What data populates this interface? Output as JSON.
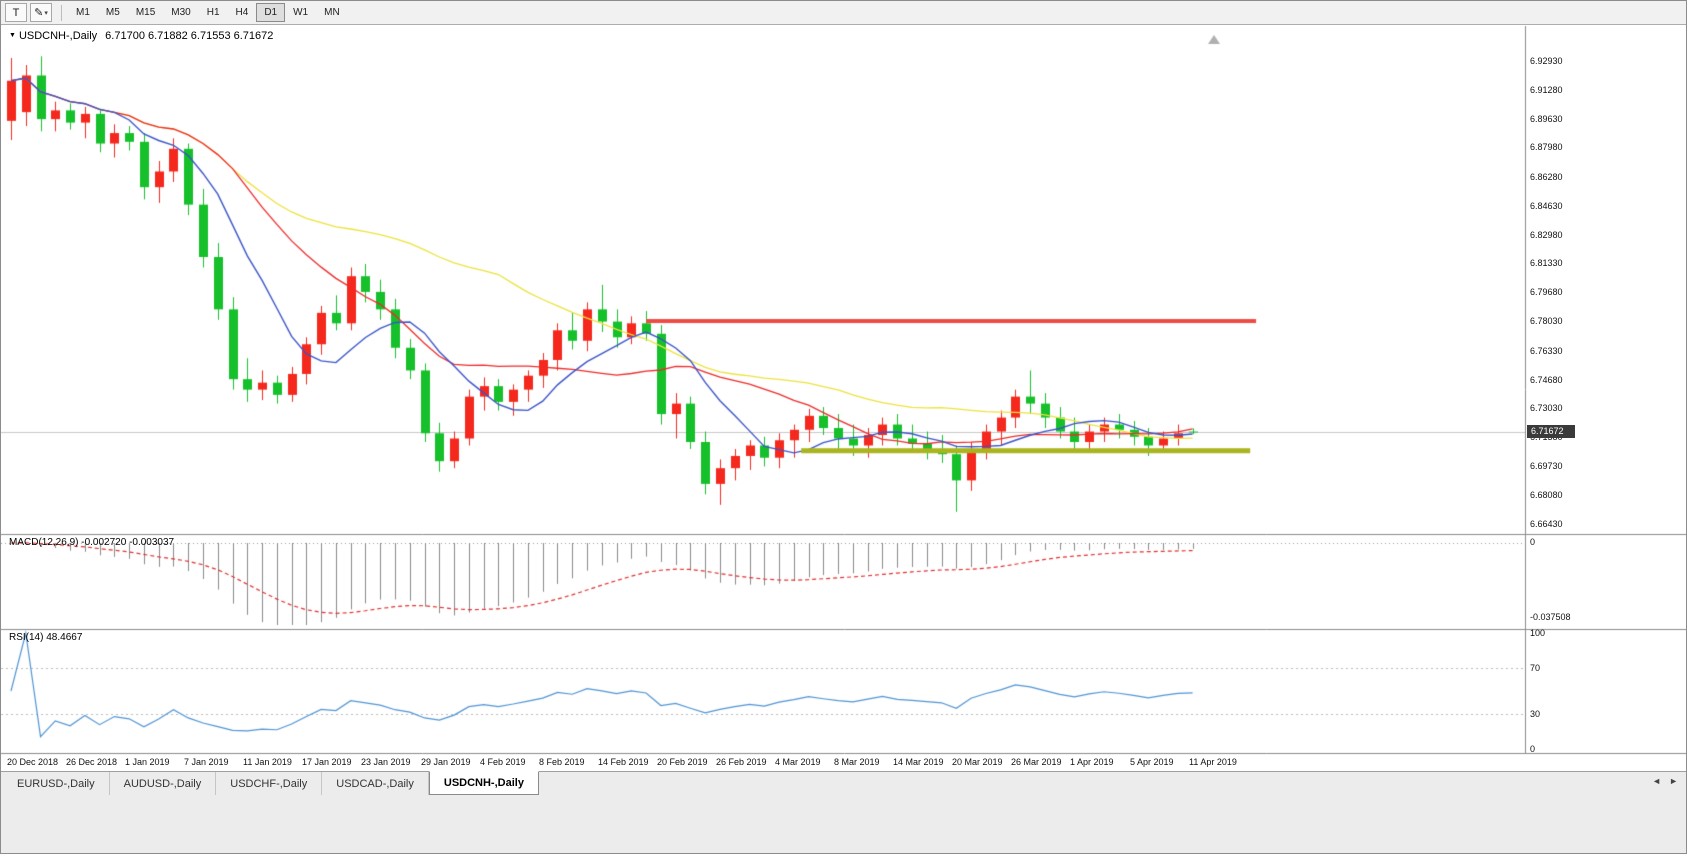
{
  "toolbar": {
    "text_tool_label": "T",
    "draw_tool_icon": "✎",
    "dropdown_caret": "▾",
    "timeframes": [
      "M1",
      "M5",
      "M15",
      "M30",
      "H1",
      "H4",
      "D1",
      "W1",
      "MN"
    ],
    "active_timeframe": "D1"
  },
  "chart": {
    "title_symbol": "USDCNH-,Daily",
    "title_ohlc": "6.71700 6.71882 6.71553 6.71672",
    "current_price_tag": "6.71672"
  },
  "macd_panel": {
    "label": "MACD(12,26,9) -0.002720 -0.003037",
    "axis_ticks": [
      "0",
      "-0.037508"
    ]
  },
  "rsi_panel": {
    "label": "RSI(14) 48.4667",
    "axis_ticks": [
      "100",
      "70",
      "30",
      "0"
    ]
  },
  "tabs": [
    {
      "label": "EURUSD-,Daily",
      "active": false
    },
    {
      "label": "AUDUSD-,Daily",
      "active": false
    },
    {
      "label": "USDCHF-,Daily",
      "active": false
    },
    {
      "label": "USDCAD-,Daily",
      "active": false
    },
    {
      "label": "USDCNH-,Daily",
      "active": true
    }
  ],
  "tab_nav": {
    "left": "◄",
    "right": "►"
  },
  "chart_data": {
    "type": "candlestick",
    "symbol": "USDCNH",
    "period": "Daily",
    "ohlc_display": {
      "open": "6.71700",
      "high": "6.71882",
      "low": "6.71553",
      "close": "6.71672"
    },
    "up_color": "#f5281e",
    "down_color": "#15c02b",
    "price_axis": {
      "max": 6.9293,
      "min": 6.6643,
      "tick_labels": [
        "6.92930",
        "6.91280",
        "6.89630",
        "6.87980",
        "6.86280",
        "6.84630",
        "6.82980",
        "6.81330",
        "6.79680",
        "6.78030",
        "6.76330",
        "6.74680",
        "6.73030",
        "6.71380",
        "6.69730",
        "6.68080",
        "6.66430"
      ]
    },
    "x_axis": {
      "tick_labels": [
        {
          "label": "20 Dec 2018",
          "index": 0
        },
        {
          "label": "26 Dec 2018",
          "index": 4
        },
        {
          "label": "1 Jan 2019",
          "index": 8
        },
        {
          "label": "7 Jan 2019",
          "index": 12
        },
        {
          "label": "11 Jan 2019",
          "index": 16
        },
        {
          "label": "17 Jan 2019",
          "index": 20
        },
        {
          "label": "23 Jan 2019",
          "index": 24
        },
        {
          "label": "29 Jan 2019",
          "index": 28
        },
        {
          "label": "4 Feb 2019",
          "index": 32
        },
        {
          "label": "8 Feb 2019",
          "index": 36
        },
        {
          "label": "14 Feb 2019",
          "index": 40
        },
        {
          "label": "20 Feb 2019",
          "index": 44
        },
        {
          "label": "26 Feb 2019",
          "index": 48
        },
        {
          "label": "4 Mar 2019",
          "index": 52
        },
        {
          "label": "8 Mar 2019",
          "index": 56
        },
        {
          "label": "14 Mar 2019",
          "index": 60
        },
        {
          "label": "20 Mar 2019",
          "index": 64
        },
        {
          "label": "26 Mar 2019",
          "index": 68
        },
        {
          "label": "1 Apr 2019",
          "index": 72
        },
        {
          "label": "5 Apr 2019",
          "index": 76
        },
        {
          "label": "11 Apr 2019",
          "index": 80
        }
      ]
    },
    "candles": [
      {
        "t": "20 Dec 2018",
        "o": 6.895,
        "h": 6.931,
        "l": 6.884,
        "c": 6.918
      },
      {
        "t": "21 Dec 2018",
        "o": 6.9,
        "h": 6.927,
        "l": 6.892,
        "c": 6.921
      },
      {
        "t": "24 Dec 2018",
        "o": 6.921,
        "h": 6.932,
        "l": 6.889,
        "c": 6.896
      },
      {
        "t": "25 Dec 2018",
        "o": 6.896,
        "h": 6.906,
        "l": 6.889,
        "c": 6.901
      },
      {
        "t": "26 Dec 2018",
        "o": 6.901,
        "h": 6.905,
        "l": 6.89,
        "c": 6.894
      },
      {
        "t": "27 Dec 2018",
        "o": 6.894,
        "h": 6.903,
        "l": 6.885,
        "c": 6.899
      },
      {
        "t": "28 Dec 2018",
        "o": 6.899,
        "h": 6.902,
        "l": 6.877,
        "c": 6.882
      },
      {
        "t": "31 Dec 2018",
        "o": 6.882,
        "h": 6.893,
        "l": 6.874,
        "c": 6.888
      },
      {
        "t": "1 Jan 2019",
        "o": 6.888,
        "h": 6.892,
        "l": 6.878,
        "c": 6.883
      },
      {
        "t": "2 Jan 2019",
        "o": 6.883,
        "h": 6.888,
        "l": 6.85,
        "c": 6.857
      },
      {
        "t": "3 Jan 2019",
        "o": 6.857,
        "h": 6.872,
        "l": 6.848,
        "c": 6.866
      },
      {
        "t": "4 Jan 2019",
        "o": 6.866,
        "h": 6.885,
        "l": 6.86,
        "c": 6.879
      },
      {
        "t": "7 Jan 2019",
        "o": 6.879,
        "h": 6.882,
        "l": 6.841,
        "c": 6.847
      },
      {
        "t": "8 Jan 2019",
        "o": 6.847,
        "h": 6.856,
        "l": 6.811,
        "c": 6.817
      },
      {
        "t": "9 Jan 2019",
        "o": 6.817,
        "h": 6.825,
        "l": 6.781,
        "c": 6.787
      },
      {
        "t": "10 Jan 2019",
        "o": 6.787,
        "h": 6.794,
        "l": 6.741,
        "c": 6.747
      },
      {
        "t": "11 Jan 2019",
        "o": 6.747,
        "h": 6.759,
        "l": 6.734,
        "c": 6.741
      },
      {
        "t": "14 Jan 2019",
        "o": 6.741,
        "h": 6.752,
        "l": 6.735,
        "c": 6.745
      },
      {
        "t": "15 Jan 2019",
        "o": 6.745,
        "h": 6.749,
        "l": 6.733,
        "c": 6.738
      },
      {
        "t": "16 Jan 2019",
        "o": 6.738,
        "h": 6.754,
        "l": 6.734,
        "c": 6.75
      },
      {
        "t": "17 Jan 2019",
        "o": 6.75,
        "h": 6.771,
        "l": 6.744,
        "c": 6.767
      },
      {
        "t": "18 Jan 2019",
        "o": 6.767,
        "h": 6.789,
        "l": 6.761,
        "c": 6.785
      },
      {
        "t": "21 Jan 2019",
        "o": 6.785,
        "h": 6.795,
        "l": 6.775,
        "c": 6.779
      },
      {
        "t": "22 Jan 2019",
        "o": 6.779,
        "h": 6.811,
        "l": 6.775,
        "c": 6.806
      },
      {
        "t": "23 Jan 2019",
        "o": 6.806,
        "h": 6.813,
        "l": 6.791,
        "c": 6.797
      },
      {
        "t": "24 Jan 2019",
        "o": 6.797,
        "h": 6.804,
        "l": 6.781,
        "c": 6.787
      },
      {
        "t": "25 Jan 2019",
        "o": 6.787,
        "h": 6.793,
        "l": 6.759,
        "c": 6.765
      },
      {
        "t": "28 Jan 2019",
        "o": 6.765,
        "h": 6.77,
        "l": 6.747,
        "c": 6.752
      },
      {
        "t": "29 Jan 2019",
        "o": 6.752,
        "h": 6.756,
        "l": 6.711,
        "c": 6.716
      },
      {
        "t": "30 Jan 2019",
        "o": 6.716,
        "h": 6.722,
        "l": 6.694,
        "c": 6.7
      },
      {
        "t": "31 Jan 2019",
        "o": 6.7,
        "h": 6.717,
        "l": 6.696,
        "c": 6.713
      },
      {
        "t": "1 Feb 2019",
        "o": 6.713,
        "h": 6.741,
        "l": 6.709,
        "c": 6.737
      },
      {
        "t": "4 Feb 2019",
        "o": 6.737,
        "h": 6.748,
        "l": 6.729,
        "c": 6.743
      },
      {
        "t": "5 Feb 2019",
        "o": 6.743,
        "h": 6.747,
        "l": 6.729,
        "c": 6.734
      },
      {
        "t": "6 Feb 2019",
        "o": 6.734,
        "h": 6.744,
        "l": 6.726,
        "c": 6.741
      },
      {
        "t": "7 Feb 2019",
        "o": 6.741,
        "h": 6.752,
        "l": 6.734,
        "c": 6.749
      },
      {
        "t": "8 Feb 2019",
        "o": 6.749,
        "h": 6.762,
        "l": 6.742,
        "c": 6.758
      },
      {
        "t": "11 Feb 2019",
        "o": 6.758,
        "h": 6.779,
        "l": 6.752,
        "c": 6.775
      },
      {
        "t": "12 Feb 2019",
        "o": 6.775,
        "h": 6.785,
        "l": 6.764,
        "c": 6.769
      },
      {
        "t": "13 Feb 2019",
        "o": 6.769,
        "h": 6.791,
        "l": 6.763,
        "c": 6.787
      },
      {
        "t": "14 Feb 2019",
        "o": 6.787,
        "h": 6.801,
        "l": 6.774,
        "c": 6.78
      },
      {
        "t": "15 Feb 2019",
        "o": 6.78,
        "h": 6.787,
        "l": 6.765,
        "c": 6.771
      },
      {
        "t": "18 Feb 2019",
        "o": 6.771,
        "h": 6.783,
        "l": 6.767,
        "c": 6.779
      },
      {
        "t": "19 Feb 2019",
        "o": 6.779,
        "h": 6.786,
        "l": 6.769,
        "c": 6.773
      },
      {
        "t": "20 Feb 2019",
        "o": 6.773,
        "h": 6.778,
        "l": 6.721,
        "c": 6.727
      },
      {
        "t": "21 Feb 2019",
        "o": 6.727,
        "h": 6.739,
        "l": 6.713,
        "c": 6.733
      },
      {
        "t": "22 Feb 2019",
        "o": 6.733,
        "h": 6.737,
        "l": 6.707,
        "c": 6.711
      },
      {
        "t": "25 Feb 2019",
        "o": 6.711,
        "h": 6.717,
        "l": 6.681,
        "c": 6.687
      },
      {
        "t": "26 Feb 2019",
        "o": 6.687,
        "h": 6.701,
        "l": 6.675,
        "c": 6.696
      },
      {
        "t": "27 Feb 2019",
        "o": 6.696,
        "h": 6.707,
        "l": 6.689,
        "c": 6.703
      },
      {
        "t": "28 Feb 2019",
        "o": 6.703,
        "h": 6.712,
        "l": 6.695,
        "c": 6.709
      },
      {
        "t": "1 Mar 2019",
        "o": 6.709,
        "h": 6.714,
        "l": 6.697,
        "c": 6.702
      },
      {
        "t": "4 Mar 2019",
        "o": 6.702,
        "h": 6.716,
        "l": 6.696,
        "c": 6.712
      },
      {
        "t": "5 Mar 2019",
        "o": 6.712,
        "h": 6.721,
        "l": 6.702,
        "c": 6.718
      },
      {
        "t": "6 Mar 2019",
        "o": 6.718,
        "h": 6.73,
        "l": 6.711,
        "c": 6.726
      },
      {
        "t": "7 Mar 2019",
        "o": 6.726,
        "h": 6.731,
        "l": 6.715,
        "c": 6.719
      },
      {
        "t": "8 Mar 2019",
        "o": 6.719,
        "h": 6.727,
        "l": 6.707,
        "c": 6.713
      },
      {
        "t": "11 Mar 2019",
        "o": 6.713,
        "h": 6.721,
        "l": 6.703,
        "c": 6.709
      },
      {
        "t": "12 Mar 2019",
        "o": 6.709,
        "h": 6.719,
        "l": 6.702,
        "c": 6.715
      },
      {
        "t": "13 Mar 2019",
        "o": 6.715,
        "h": 6.725,
        "l": 6.709,
        "c": 6.721
      },
      {
        "t": "14 Mar 2019",
        "o": 6.721,
        "h": 6.727,
        "l": 6.709,
        "c": 6.713
      },
      {
        "t": "15 Mar 2019",
        "o": 6.713,
        "h": 6.721,
        "l": 6.705,
        "c": 6.71
      },
      {
        "t": "18 Mar 2019",
        "o": 6.71,
        "h": 6.717,
        "l": 6.701,
        "c": 6.707
      },
      {
        "t": "19 Mar 2019",
        "o": 6.707,
        "h": 6.715,
        "l": 6.699,
        "c": 6.704
      },
      {
        "t": "20 Mar 2019",
        "o": 6.704,
        "h": 6.709,
        "l": 6.671,
        "c": 6.689
      },
      {
        "t": "21 Mar 2019",
        "o": 6.689,
        "h": 6.711,
        "l": 6.683,
        "c": 6.707
      },
      {
        "t": "22 Mar 2019",
        "o": 6.707,
        "h": 6.721,
        "l": 6.701,
        "c": 6.717
      },
      {
        "t": "25 Mar 2019",
        "o": 6.717,
        "h": 6.729,
        "l": 6.709,
        "c": 6.725
      },
      {
        "t": "26 Mar 2019",
        "o": 6.725,
        "h": 6.741,
        "l": 6.719,
        "c": 6.737
      },
      {
        "t": "27 Mar 2019",
        "o": 6.737,
        "h": 6.752,
        "l": 6.727,
        "c": 6.733
      },
      {
        "t": "28 Mar 2019",
        "o": 6.733,
        "h": 6.739,
        "l": 6.719,
        "c": 6.725
      },
      {
        "t": "29 Mar 2019",
        "o": 6.725,
        "h": 6.731,
        "l": 6.713,
        "c": 6.717
      },
      {
        "t": "1 Apr 2019",
        "o": 6.717,
        "h": 6.725,
        "l": 6.707,
        "c": 6.711
      },
      {
        "t": "2 Apr 2019",
        "o": 6.711,
        "h": 6.721,
        "l": 6.705,
        "c": 6.717
      },
      {
        "t": "3 Apr 2019",
        "o": 6.717,
        "h": 6.725,
        "l": 6.711,
        "c": 6.721
      },
      {
        "t": "4 Apr 2019",
        "o": 6.721,
        "h": 6.727,
        "l": 6.713,
        "c": 6.718
      },
      {
        "t": "5 Apr 2019",
        "o": 6.718,
        "h": 6.723,
        "l": 6.709,
        "c": 6.714
      },
      {
        "t": "8 Apr 2019",
        "o": 6.714,
        "h": 6.719,
        "l": 6.703,
        "c": 6.709
      },
      {
        "t": "9 Apr 2019",
        "o": 6.709,
        "h": 6.717,
        "l": 6.705,
        "c": 6.713
      },
      {
        "t": "10 Apr 2019",
        "o": 6.713,
        "h": 6.721,
        "l": 6.709,
        "c": 6.716
      },
      {
        "t": "11 Apr 2019",
        "o": 6.717,
        "h": 6.71882,
        "l": 6.71553,
        "c": 6.71672
      }
    ],
    "moving_averages": [
      {
        "type": "sma",
        "period": 34,
        "color": "#ece23e",
        "width": 1.3
      },
      {
        "type": "sma",
        "period": 16,
        "color": "#ee2a2a",
        "width": 1.3
      },
      {
        "type": "sma",
        "period": 8,
        "color": "#3b55c8",
        "width": 1.4
      }
    ],
    "hlines": [
      {
        "name": "resistance",
        "price": 6.7803,
        "color": "#ef4a44",
        "thickness": 4,
        "from_index": 43,
        "to_index": 84.3
      },
      {
        "name": "support",
        "price": 6.706,
        "color": "#a9b41f",
        "thickness": 5,
        "from_index": 53.5,
        "to_index": 83.9
      }
    ],
    "macd": {
      "fast": 12,
      "slow": 26,
      "signal": 9,
      "display_macd": "-0.002720",
      "display_signal": "-0.003037",
      "histogram_color": "#8a8a8a",
      "signal_color": "#e03030",
      "scale_min": -0.037508
    },
    "rsi": {
      "period": 14,
      "display_value": "48.4667",
      "color": "#4f94d4",
      "levels": [
        30,
        70
      ]
    }
  }
}
